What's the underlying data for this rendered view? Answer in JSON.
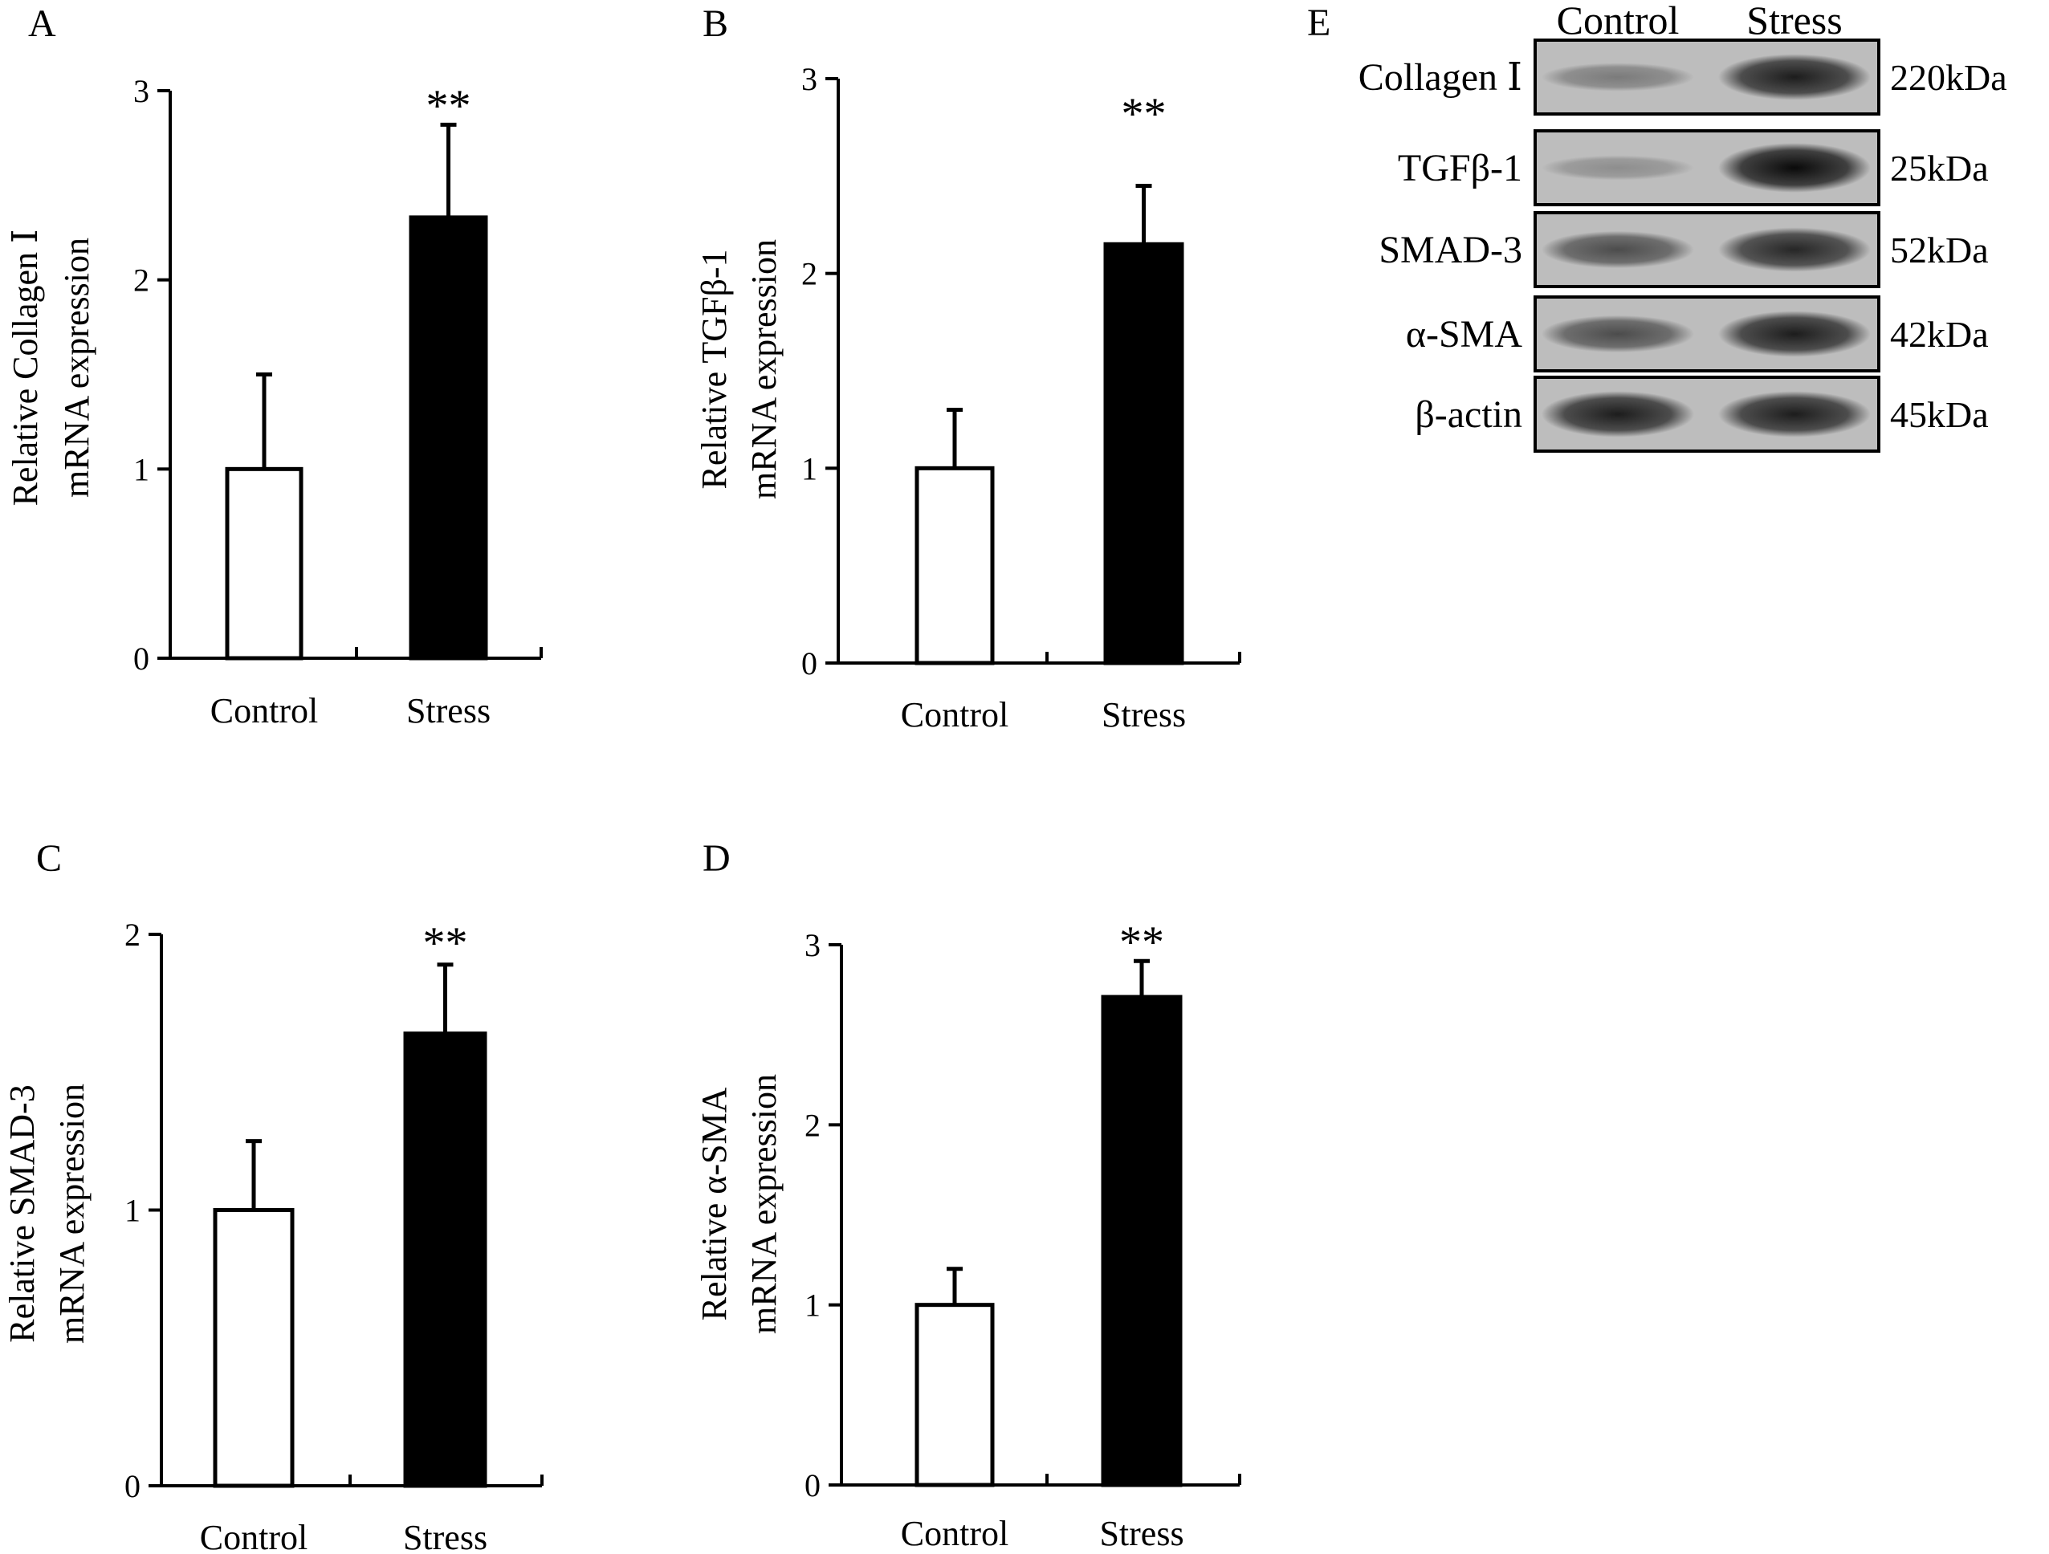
{
  "chart_data": [
    {
      "type": "bar",
      "panel_label": "A",
      "categories": [
        "Control",
        "Stress"
      ],
      "values": [
        1.0,
        2.33
      ],
      "errors": [
        0.5,
        0.49
      ],
      "bar_colors": [
        "#ffffff",
        "#000000"
      ],
      "significance": [
        "",
        "**"
      ],
      "ylabel_line1": "Relative Collagen Ⅰ",
      "ylabel_line2": "mRNA  expression",
      "ylim": [
        0,
        3
      ],
      "yticks": [
        "0",
        "1",
        "2",
        "3"
      ]
    },
    {
      "type": "bar",
      "panel_label": "B",
      "categories": [
        "Control",
        "Stress"
      ],
      "values": [
        1.0,
        2.15
      ],
      "errors": [
        0.3,
        0.3
      ],
      "bar_colors": [
        "#ffffff",
        "#000000"
      ],
      "significance": [
        "",
        "**"
      ],
      "ylabel_line1": "Relative TGFβ-1",
      "ylabel_line2": "mRNA  expression",
      "ylim": [
        0,
        3
      ],
      "yticks": [
        "0",
        "1",
        "2",
        "3"
      ]
    },
    {
      "type": "bar",
      "panel_label": "C",
      "categories": [
        "Control",
        "Stress"
      ],
      "values": [
        1.0,
        1.64
      ],
      "errors": [
        0.25,
        0.25
      ],
      "bar_colors": [
        "#ffffff",
        "#000000"
      ],
      "significance": [
        "",
        "**"
      ],
      "ylabel_line1": "Relative SMAD-3",
      "ylabel_line2": "mRNA  expression",
      "ylim": [
        0,
        2
      ],
      "yticks": [
        "0",
        "1",
        "2"
      ]
    },
    {
      "type": "bar",
      "panel_label": "D",
      "categories": [
        "Control",
        "Stress"
      ],
      "values": [
        1.0,
        2.71
      ],
      "errors": [
        0.2,
        0.2
      ],
      "bar_colors": [
        "#ffffff",
        "#000000"
      ],
      "significance": [
        "",
        "**"
      ],
      "ylabel_line1": "Relative α-SMA",
      "ylabel_line2": "mRNA  expression",
      "ylim": [
        0,
        3
      ],
      "yticks": [
        "0",
        "1",
        "2",
        "3"
      ]
    }
  ],
  "western_blot": {
    "panel_label": "E",
    "lanes": [
      "Control",
      "Stress"
    ],
    "rows": [
      {
        "protein": "Collagen Ⅰ",
        "size": "220kDa",
        "control_intensity": 0.35,
        "stress_intensity": 0.85
      },
      {
        "protein": "TGFβ-1",
        "size": "25kDa",
        "control_intensity": 0.25,
        "stress_intensity": 0.95
      },
      {
        "protein": "SMAD-3",
        "size": "52kDa",
        "control_intensity": 0.6,
        "stress_intensity": 0.8
      },
      {
        "protein": "α-SMA",
        "size": "42kDa",
        "control_intensity": 0.6,
        "stress_intensity": 0.85
      },
      {
        "protein": "β-actin",
        "size": "45kDa",
        "control_intensity": 0.85,
        "stress_intensity": 0.85
      }
    ]
  }
}
